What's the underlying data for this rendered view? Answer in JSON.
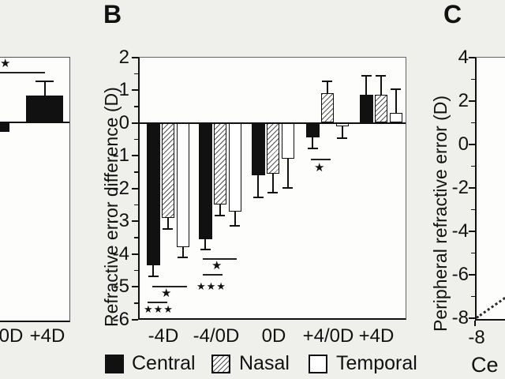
{
  "panels": {
    "a": {
      "note_visible_sliver": true
    },
    "b": {
      "label": "B"
    },
    "c": {
      "label": "C"
    }
  },
  "chart_data": [
    {
      "panel": "A",
      "type": "bar",
      "note": "left panel cropped at image edge; only right portion visible",
      "categories": [
        "0D",
        "+4D"
      ],
      "series": [
        {
          "name": "Central",
          "values": [
            -0.3,
            0.8
          ],
          "errors": [
            0,
            0.45
          ]
        }
      ],
      "significance": [
        {
          "marks": [
            "*"
          ]
        }
      ]
    },
    {
      "panel": "B",
      "type": "bar",
      "ylabel": "Refractive error difference (D)",
      "ylim": [
        -6,
        2
      ],
      "yticks": [
        2,
        1,
        0,
        -1,
        -2,
        -3,
        -4,
        -5,
        -6
      ],
      "categories": [
        "-4D",
        "-4/0D",
        "0D",
        "+4/0D",
        "+4D"
      ],
      "series": [
        {
          "name": "Central",
          "values": [
            -4.35,
            -3.55,
            -1.6,
            -0.45,
            0.85
          ],
          "errors": [
            0.35,
            0.35,
            0.7,
            0.35,
            0.6
          ]
        },
        {
          "name": "Nasal",
          "values": [
            -2.9,
            -2.5,
            -1.55,
            0.9,
            0.85
          ],
          "errors": [
            0.36,
            0.36,
            0.6,
            0.4,
            0.6
          ]
        },
        {
          "name": "Temporal",
          "values": [
            -3.8,
            -2.7,
            -1.1,
            -0.1,
            0.3
          ],
          "errors": [
            0.33,
            0.46,
            0.9,
            0.4,
            0.75
          ]
        }
      ],
      "legend_position": "bottom",
      "grid": false,
      "significance": [
        {
          "category": "-4D",
          "marks": [
            "*",
            "***"
          ]
        },
        {
          "category": "-4/0D",
          "marks": [
            "*",
            "***"
          ]
        },
        {
          "category": "+4/0D",
          "marks": [
            "*"
          ]
        }
      ]
    },
    {
      "panel": "C",
      "type": "scatter",
      "note": "right panel cropped at image edge; only axis sliver visible",
      "ylabel": "Peripheral refractive error (D)",
      "xlabel_visible": "Ce",
      "ylim": [
        -8,
        4
      ],
      "yticks": [
        4,
        2,
        0,
        -2,
        -4,
        -6,
        -8
      ],
      "xticks_visible": [
        "-8"
      ],
      "annotations": [
        "dotted identity line rising from (-8,-8)"
      ]
    }
  ],
  "colors": {
    "background": "#efefec",
    "plot_background": "#fdfdfb",
    "ink": "#111111"
  }
}
